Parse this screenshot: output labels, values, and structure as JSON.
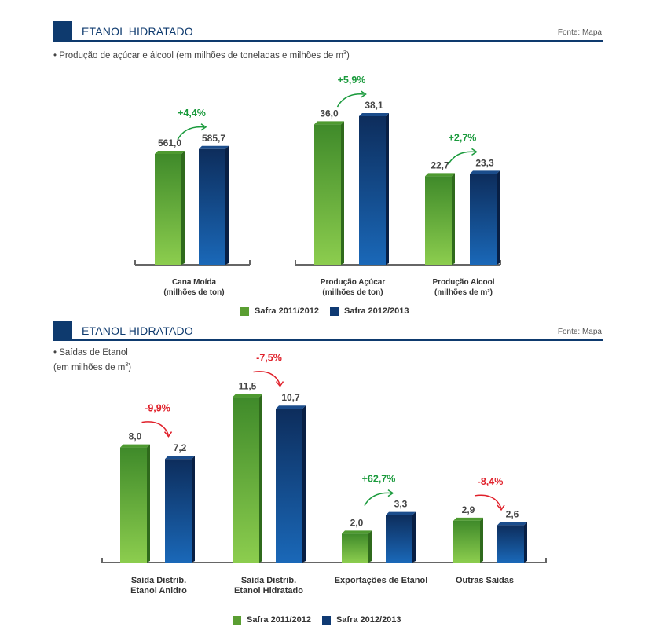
{
  "colors": {
    "green": "#5a9e32",
    "blue": "#0f3a73",
    "up": "#1a9a3c",
    "down": "#e0202a",
    "header": "#0e3a6e"
  },
  "top": {
    "title": "ETANOL HIDRATADO",
    "source": "Fonte: Mapa",
    "subtitle": "• Produção de açúcar e álcool (em milhões de toneladas e milhões de m",
    "subtitle_sup": "3",
    "subtitle_end": ")",
    "legend": [
      "Safra 2011/2012",
      "Safra 2012/2013"
    ]
  },
  "bottom": {
    "title": "ETANOL HIDRATADO",
    "source": "Fonte: Mapa",
    "subtitle_line1": "• Saídas de Etanol",
    "subtitle_line2": "(em milhões de m",
    "subtitle_sup": "3",
    "subtitle_end": ")",
    "legend": [
      "Safra 2011/2012",
      "Safra 2012/2013"
    ]
  },
  "chart_data": [
    {
      "type": "bar",
      "categories": [
        [
          "Cana Moída",
          "(milhões de ton)"
        ],
        [
          "Produção Açúcar",
          "(milhões de ton)"
        ],
        [
          "Produção Alcool",
          "(milhões de m³)"
        ]
      ],
      "series": [
        {
          "name": "Safra 2011/2012",
          "values": [
            561.0,
            36.0,
            22.7
          ],
          "labels": [
            "561,0",
            "36,0",
            "22,7"
          ]
        },
        {
          "name": "Safra 2012/2013",
          "values": [
            585.7,
            38.1,
            23.3
          ],
          "labels": [
            "585,7",
            "38,1",
            "23,3"
          ]
        }
      ],
      "changes": [
        "+4,4%",
        "+5,9%",
        "+2,7%"
      ],
      "change_direction": [
        "up",
        "up",
        "up"
      ]
    },
    {
      "type": "bar",
      "categories": [
        [
          "Saída Distrib.",
          "Etanol Anidro"
        ],
        [
          "Saída Distrib.",
          "Etanol Hidratado"
        ],
        [
          "Exportações de Etanol"
        ],
        [
          "Outras Saídas"
        ]
      ],
      "series": [
        {
          "name": "Safra 2011/2012",
          "values": [
            8.0,
            11.5,
            2.0,
            2.9
          ],
          "labels": [
            "8,0",
            "11,5",
            "2,0",
            "2,9"
          ]
        },
        {
          "name": "Safra 2012/2013",
          "values": [
            7.2,
            10.7,
            3.3,
            2.6
          ],
          "labels": [
            "7,2",
            "10,7",
            "3,3",
            "2,6"
          ]
        }
      ],
      "changes": [
        "-9,9%",
        "-7,5%",
        "+62,7%",
        "-8,4%"
      ],
      "change_direction": [
        "down",
        "down",
        "up",
        "down"
      ]
    }
  ]
}
